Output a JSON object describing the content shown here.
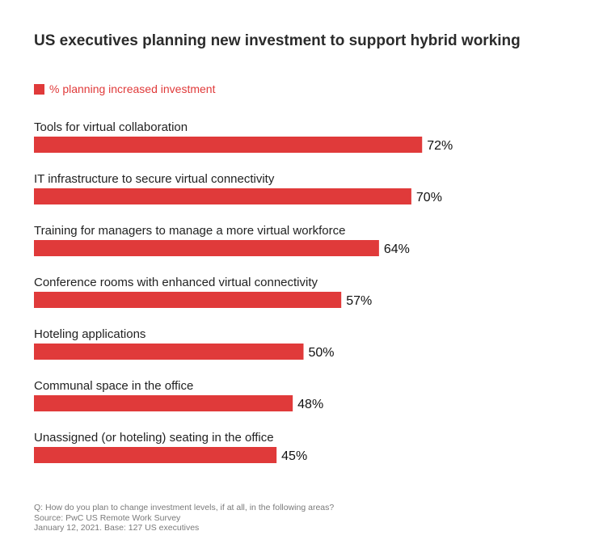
{
  "title": "US executives planning new investment to support hybrid working",
  "legend": {
    "label": "% planning increased investment",
    "color": "#e03a3a"
  },
  "chart_data": {
    "type": "bar",
    "orientation": "horizontal",
    "title": "US executives planning new investment to support hybrid working",
    "categories": [
      "Tools for virtual collaboration",
      "IT infrastructure to secure virtual connectivity",
      "Training for managers to manage a more virtual workforce",
      "Conference rooms with enhanced virtual connectivity",
      "Hoteling applications",
      "Communal space in the office",
      "Unassigned (or hoteling) seating in the office"
    ],
    "series": [
      {
        "name": "% planning increased investment",
        "values": [
          72,
          70,
          64,
          57,
          50,
          48,
          45
        ]
      }
    ],
    "value_labels": [
      "72%",
      "70%",
      "64%",
      "57%",
      "50%",
      "48%",
      "45%"
    ],
    "xlim": [
      0,
      100
    ],
    "grid": false,
    "legend_position": "top-left",
    "bar_color": "#e03a3a"
  },
  "footer": {
    "question": "Q: How do you plan to change investment levels, if at all, in the following areas?",
    "source": "Source: PwC US Remote Work Survey",
    "date_base": "January 12, 2021. Base: 127 US executives"
  }
}
